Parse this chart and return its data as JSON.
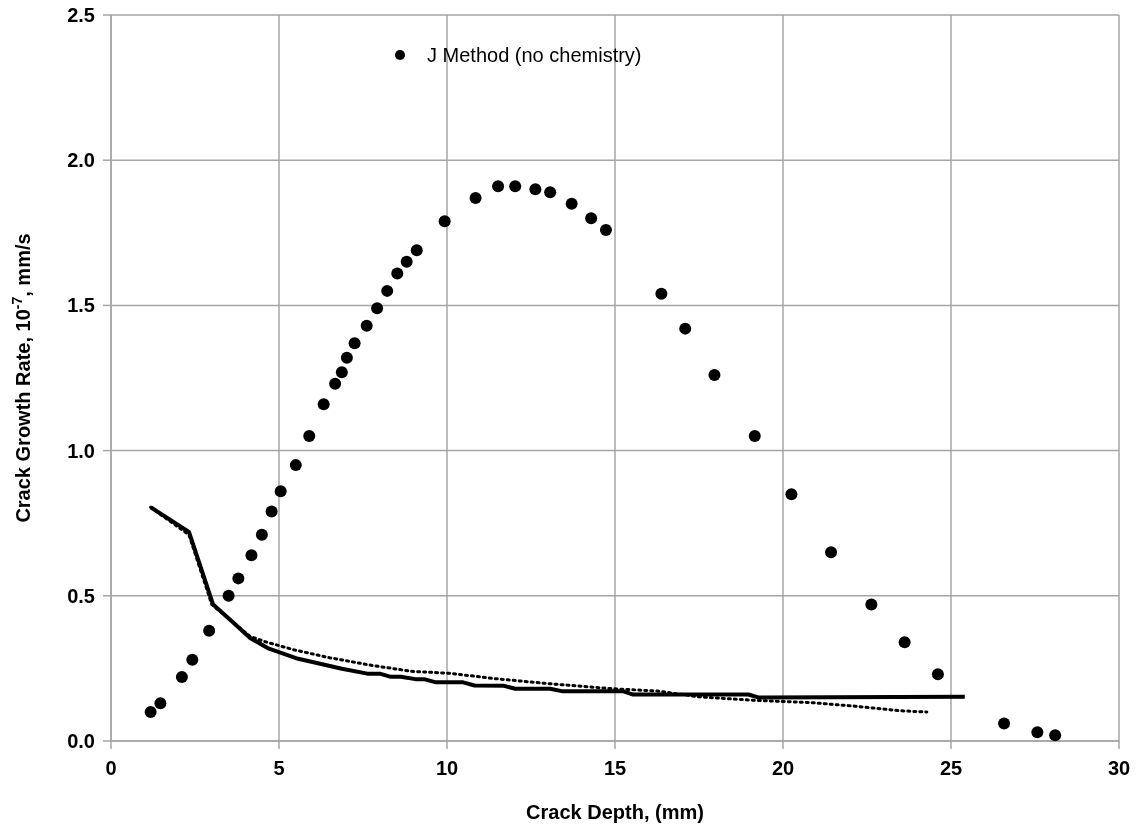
{
  "chart_data": {
    "type": "line",
    "xlabel": "Crack Depth, (mm)",
    "ylabel": "Crack Growth Rate, 10$^{-7}$,  mm/s",
    "xlim": [
      0,
      30
    ],
    "xticks": [
      0,
      5,
      10,
      15,
      20,
      25,
      30
    ],
    "ylim": [
      0,
      2.5
    ],
    "yticks": [
      {
        "value": 0,
        "label": "0.0"
      },
      {
        "value": 0.5,
        "label": "0.5"
      },
      {
        "value": 1,
        "label": "1.0"
      },
      {
        "value": 1.5,
        "label": "1.5"
      },
      {
        "value": 2,
        "label": "2.0"
      },
      {
        "value": 2.5,
        "label": "2.5"
      }
    ],
    "grid": true,
    "legend": "top",
    "series": [
      {
        "color": "#000000",
        "line_style": "solid",
        "x": [
          1.18,
          2.32,
          3.04,
          3.62,
          4.14,
          4.66,
          5.57,
          6.16,
          6.87,
          7.63,
          8.0,
          8.33,
          8.62,
          9.06,
          9.32,
          9.67,
          10.48,
          10.82,
          11.7,
          12.03,
          13.07,
          13.45,
          15.25,
          15.54,
          18.97,
          19.26,
          25.41
        ],
        "values": [
          0.805,
          0.72,
          0.47,
          0.41,
          0.355,
          0.32,
          0.283,
          0.268,
          0.249,
          0.232,
          0.232,
          0.221,
          0.221,
          0.213,
          0.213,
          0.202,
          0.202,
          0.191,
          0.19,
          0.18,
          0.18,
          0.171,
          0.171,
          0.16,
          0.16,
          0.15,
          0.152
        ]
      },
      {
        "type": "scatter",
        "name": "J Method (no chemistry)",
        "color": "#000000",
        "marker": "circle",
        "x": [
          1.18,
          1.47,
          2.11,
          2.42,
          2.92,
          3.5,
          3.79,
          4.18,
          4.49,
          4.78,
          5.05,
          5.5,
          5.9,
          6.33,
          6.67,
          6.87,
          7.02,
          7.25,
          7.61,
          7.92,
          8.22,
          8.52,
          8.8,
          9.1,
          9.93,
          10.85,
          11.52,
          12.03,
          12.63,
          13.07,
          13.71,
          14.29,
          14.73,
          16.38,
          17.09,
          17.96,
          19.16,
          20.25,
          21.43,
          22.63,
          23.62,
          24.61,
          26.58,
          27.57,
          28.1
        ],
        "values": [
          0.1,
          0.13,
          0.22,
          0.28,
          0.38,
          0.5,
          0.56,
          0.64,
          0.71,
          0.79,
          0.86,
          0.95,
          1.05,
          1.16,
          1.23,
          1.27,
          1.32,
          1.37,
          1.43,
          1.49,
          1.55,
          1.61,
          1.65,
          1.69,
          1.79,
          1.87,
          1.91,
          1.91,
          1.9,
          1.89,
          1.85,
          1.8,
          1.76,
          1.54,
          1.42,
          1.26,
          1.05,
          0.85,
          0.65,
          0.47,
          0.34,
          0.23,
          0.06,
          0.03,
          0.02
        ]
      },
      {
        "color": "#000000",
        "line_style": "dotted",
        "x": [
          1.18,
          2.32,
          3.0,
          3.62,
          4.14,
          4.64,
          5.48,
          6.5,
          7.78,
          8.94,
          10.1,
          11.4,
          13.07,
          14.93,
          16.27,
          17.5,
          19.13,
          20.86,
          22.13,
          23.5,
          24.28
        ],
        "values": [
          0.805,
          0.71,
          0.47,
          0.41,
          0.36,
          0.34,
          0.313,
          0.287,
          0.26,
          0.24,
          0.233,
          0.215,
          0.197,
          0.18,
          0.172,
          0.152,
          0.14,
          0.132,
          0.12,
          0.104,
          0.1
        ]
      }
    ]
  }
}
